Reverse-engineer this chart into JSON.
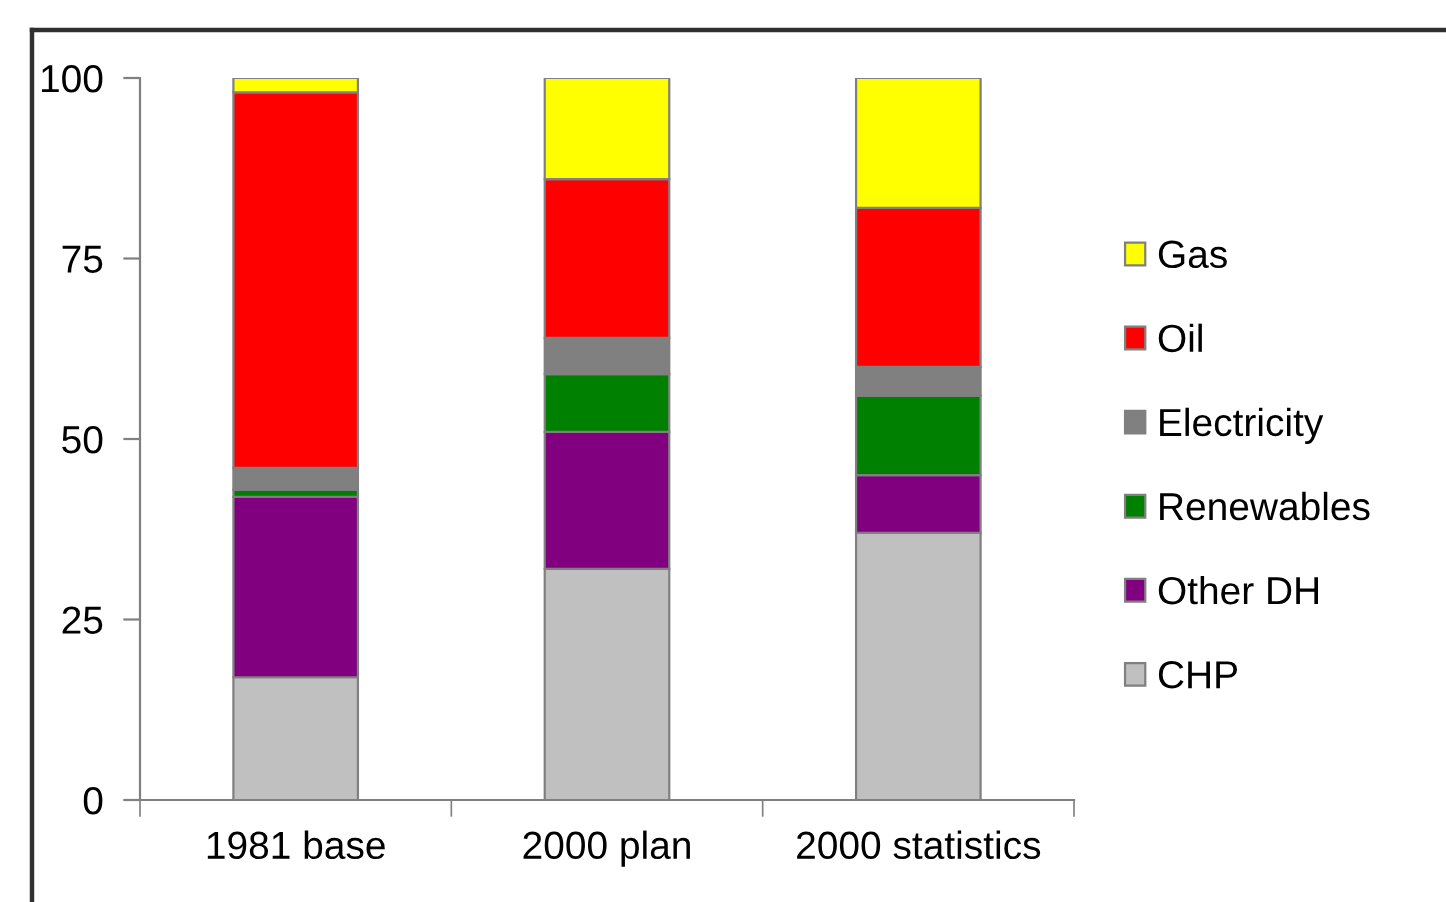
{
  "chart_data": {
    "type": "bar",
    "stacked": true,
    "categories": [
      "1981 base",
      "2000 plan",
      "2000 statistics"
    ],
    "series": [
      {
        "name": "CHP",
        "color": "#c0c0c0",
        "values": [
          17,
          32,
          37
        ]
      },
      {
        "name": "Other DH",
        "color": "#800080",
        "values": [
          25,
          19,
          8
        ]
      },
      {
        "name": "Renewables",
        "color": "#008000",
        "values": [
          1,
          8,
          11
        ]
      },
      {
        "name": "Electricity",
        "color": "#808080",
        "values": [
          3,
          5,
          4
        ]
      },
      {
        "name": "Oil",
        "color": "#ff0000",
        "values": [
          52,
          22,
          22
        ]
      },
      {
        "name": "Gas",
        "color": "#ffff00",
        "values": [
          2,
          14,
          18
        ]
      }
    ],
    "ylim": [
      0,
      100
    ],
    "yticks": [
      0,
      25,
      50,
      75,
      100
    ],
    "legend": "right"
  }
}
